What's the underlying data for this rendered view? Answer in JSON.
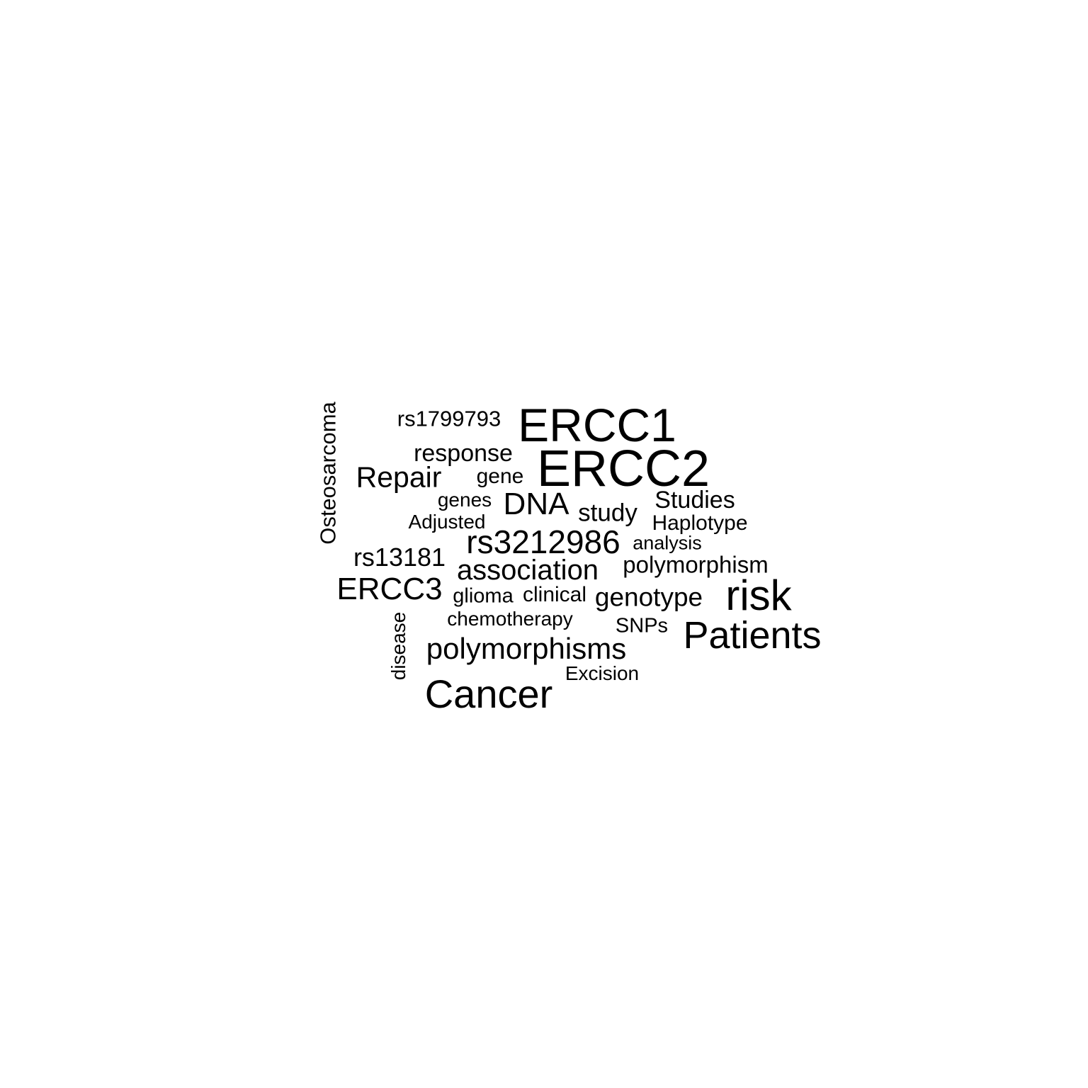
{
  "text_color": "#000000",
  "background_color": "#ffffff",
  "words": [
    {
      "text": "ERCC2"
    },
    {
      "text": "ERCC1"
    },
    {
      "text": "risk"
    },
    {
      "text": "Patients"
    },
    {
      "text": "Cancer"
    },
    {
      "text": "rs3212986"
    },
    {
      "text": "DNA"
    },
    {
      "text": "polymorphisms"
    },
    {
      "text": "association"
    },
    {
      "text": "Repair"
    },
    {
      "text": "ERCC3"
    },
    {
      "text": "genotype"
    },
    {
      "text": "study"
    },
    {
      "text": "Studies"
    },
    {
      "text": "response"
    },
    {
      "text": "rs13181"
    },
    {
      "text": "polymorphism"
    },
    {
      "text": "Osteosarcoma"
    },
    {
      "text": "rs1799793"
    },
    {
      "text": "gene"
    },
    {
      "text": "Haplotype"
    },
    {
      "text": "clinical"
    },
    {
      "text": "SNPs"
    },
    {
      "text": "glioma"
    },
    {
      "text": "genes"
    },
    {
      "text": "Adjusted"
    },
    {
      "text": "chemotherapy"
    },
    {
      "text": "analysis"
    },
    {
      "text": "Excision"
    },
    {
      "text": "disease"
    }
  ]
}
